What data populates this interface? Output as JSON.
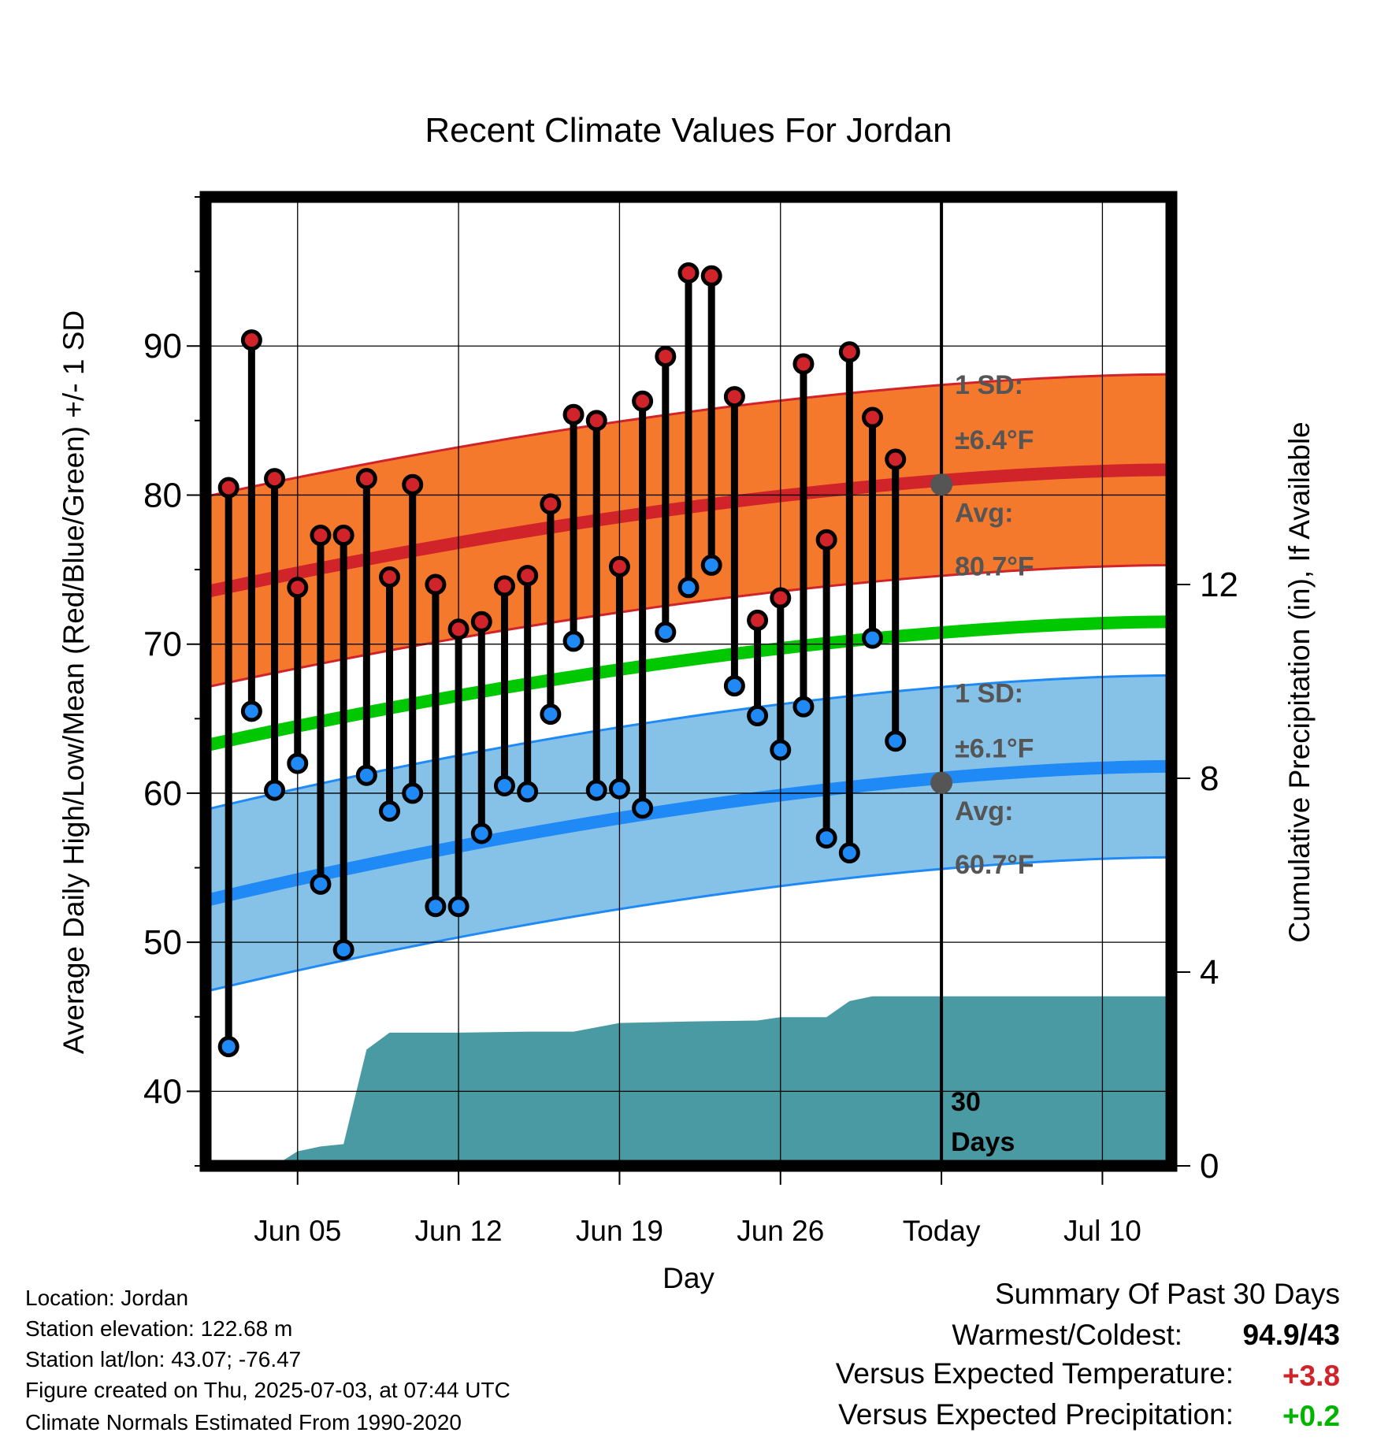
{
  "chart_data": {
    "type": "line",
    "title": "Recent Climate Values For Jordan",
    "xlabel": "Day",
    "ylabel_left": "Average Daily High/Low/Mean (Red/Blue/Green) +/- 1 SD",
    "ylabel_right": "Cumulative Precipitation (in), If Available",
    "ylim_left": [
      35,
      100
    ],
    "ylim_right": [
      0,
      20
    ],
    "x_range": [
      "2025-06-01",
      "2025-07-13"
    ],
    "x_ticks": [
      {
        "date": "2025-06-05",
        "label": "Jun 05"
      },
      {
        "date": "2025-06-12",
        "label": "Jun 12"
      },
      {
        "date": "2025-06-19",
        "label": "Jun 19"
      },
      {
        "date": "2025-06-26",
        "label": "Jun 26"
      },
      {
        "date": "2025-07-03",
        "label": "Today"
      },
      {
        "date": "2025-07-10",
        "label": "Jul 10"
      }
    ],
    "y_ticks_left": [
      40,
      50,
      60,
      70,
      80,
      90
    ],
    "y_ticks_right": [
      0,
      4,
      8,
      12
    ],
    "grid": true,
    "daily": [
      {
        "date": "2025-06-02",
        "high": 80.5,
        "low": 43.0
      },
      {
        "date": "2025-06-03",
        "high": 90.4,
        "low": 65.5
      },
      {
        "date": "2025-06-04",
        "high": 81.1,
        "low": 60.2
      },
      {
        "date": "2025-06-05",
        "high": 73.8,
        "low": 62.0
      },
      {
        "date": "2025-06-06",
        "high": 77.3,
        "low": 53.9
      },
      {
        "date": "2025-06-07",
        "high": 77.3,
        "low": 49.5
      },
      {
        "date": "2025-06-08",
        "high": 81.1,
        "low": 61.2
      },
      {
        "date": "2025-06-09",
        "high": 74.5,
        "low": 58.8
      },
      {
        "date": "2025-06-10",
        "high": 80.7,
        "low": 60.0
      },
      {
        "date": "2025-06-11",
        "high": 74.0,
        "low": 52.4
      },
      {
        "date": "2025-06-12",
        "high": 71.0,
        "low": 52.4
      },
      {
        "date": "2025-06-13",
        "high": 71.5,
        "low": 57.3
      },
      {
        "date": "2025-06-14",
        "high": 73.9,
        "low": 60.5
      },
      {
        "date": "2025-06-15",
        "high": 74.6,
        "low": 60.1
      },
      {
        "date": "2025-06-16",
        "high": 79.4,
        "low": 65.3
      },
      {
        "date": "2025-06-17",
        "high": 85.4,
        "low": 70.2
      },
      {
        "date": "2025-06-18",
        "high": 85.0,
        "low": 60.2
      },
      {
        "date": "2025-06-19",
        "high": 75.2,
        "low": 60.3
      },
      {
        "date": "2025-06-20",
        "high": 86.3,
        "low": 59.0
      },
      {
        "date": "2025-06-21",
        "high": 89.3,
        "low": 70.8
      },
      {
        "date": "2025-06-22",
        "high": 94.9,
        "low": 73.8
      },
      {
        "date": "2025-06-23",
        "high": 94.7,
        "low": 75.3
      },
      {
        "date": "2025-06-24",
        "high": 86.6,
        "low": 67.2
      },
      {
        "date": "2025-06-25",
        "high": 71.6,
        "low": 65.2
      },
      {
        "date": "2025-06-26",
        "high": 73.1,
        "low": 62.9
      },
      {
        "date": "2025-06-27",
        "high": 88.8,
        "low": 65.8
      },
      {
        "date": "2025-06-28",
        "high": 77.0,
        "low": 57.0
      },
      {
        "date": "2025-06-29",
        "high": 89.6,
        "low": 56.0
      },
      {
        "date": "2025-06-30",
        "high": 85.2,
        "low": 70.4
      },
      {
        "date": "2025-07-01",
        "high": 82.4,
        "low": 63.5
      }
    ],
    "normal_high": {
      "start": 73.5,
      "end": 81.7,
      "sd": 6.4
    },
    "normal_low": {
      "start": 52.8,
      "end": 61.8,
      "sd": 6.1
    },
    "normal_mean": {
      "start": 63.2,
      "end": 71.5
    },
    "precipitation": [
      {
        "date": "2025-06-01",
        "in": 0.0
      },
      {
        "date": "2025-06-04",
        "in": 0.0
      },
      {
        "date": "2025-06-05",
        "in": 0.3
      },
      {
        "date": "2025-06-06",
        "in": 0.4
      },
      {
        "date": "2025-06-07",
        "in": 0.45
      },
      {
        "date": "2025-06-08",
        "in": 2.4
      },
      {
        "date": "2025-06-09",
        "in": 2.75
      },
      {
        "date": "2025-06-12",
        "in": 2.75
      },
      {
        "date": "2025-06-15",
        "in": 2.77
      },
      {
        "date": "2025-06-17",
        "in": 2.77
      },
      {
        "date": "2025-06-18",
        "in": 2.86
      },
      {
        "date": "2025-06-19",
        "in": 2.95
      },
      {
        "date": "2025-06-21",
        "in": 2.97
      },
      {
        "date": "2025-06-22",
        "in": 2.98
      },
      {
        "date": "2025-06-25",
        "in": 3.0
      },
      {
        "date": "2025-06-26",
        "in": 3.07
      },
      {
        "date": "2025-06-28",
        "in": 3.07
      },
      {
        "date": "2025-06-29",
        "in": 3.4
      },
      {
        "date": "2025-06-30",
        "in": 3.5
      },
      {
        "date": "2025-07-13",
        "in": 3.5
      }
    ],
    "annotations": {
      "high_sd_label": "1 SD:",
      "high_sd_value": "±6.4°F",
      "high_avg_label": "Avg:",
      "high_avg_value": "80.7°F",
      "high_avg": 80.7,
      "low_sd_label": "1 SD:",
      "low_sd_value": "±6.1°F",
      "low_avg_label": "Avg:",
      "low_avg_value": "60.7°F",
      "low_avg": 60.7,
      "today_label_1": "30",
      "today_label_2": "Days"
    },
    "colors": {
      "high_band": "#f5792c",
      "high_line": "#d0232a",
      "low_band": "#86c2e8",
      "low_line": "#1f8af5",
      "mean_line": "#00c800",
      "precip": "#4a9aa3",
      "high_marker": "#d0232a",
      "low_marker": "#1f8af5",
      "avg_marker": "#555555",
      "annotation_text": "#555555"
    }
  },
  "info": {
    "location": "Location: Jordan",
    "elevation": "Station elevation: 122.68 m",
    "latlon": "Station lat/lon: 43.07; -76.47",
    "created": "Figure created on Thu, 2025-07-03, at 07:44 UTC",
    "normals": "Climate Normals Estimated From 1990-2020"
  },
  "summary": {
    "title": "Summary Of Past 30 Days",
    "warmest_label": "Warmest/Coldest:",
    "warmest_value": "94.9/43",
    "temp_label": "Versus Expected Temperature:",
    "temp_value": "+3.8",
    "precip_label": "Versus Expected Precipitation:",
    "precip_value": "+0.2",
    "temp_color": "#d0232a",
    "precip_color": "#00b400"
  }
}
